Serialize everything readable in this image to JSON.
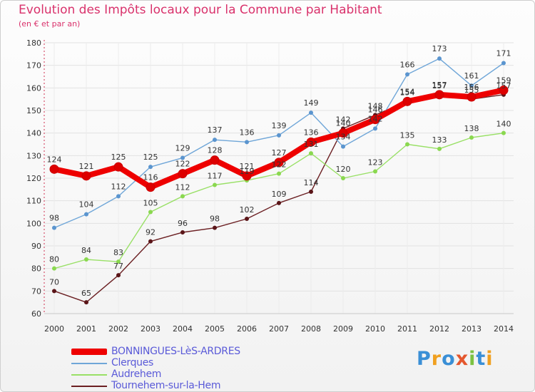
{
  "title": "Evolution des Impôts locaux pour la Commune par Habitant",
  "subtitle": "(en € et par an)",
  "brand": "Proxiti",
  "chart_data": {
    "type": "line",
    "title": "Evolution des Impôts locaux pour la Commune par Habitant",
    "subtitle": "(en € et par an)",
    "xlabel": "",
    "ylabel": "",
    "ylim": [
      60,
      180
    ],
    "yticks": [
      60,
      70,
      80,
      90,
      100,
      110,
      120,
      130,
      140,
      150,
      160,
      170,
      180
    ],
    "x": [
      2000,
      2001,
      2002,
      2003,
      2004,
      2005,
      2006,
      2007,
      2008,
      2009,
      2010,
      2011,
      2012,
      2013,
      2014
    ],
    "legend_position": "bottom-left",
    "series": [
      {
        "name": "Tournehem-sur-la-Hem",
        "color": "#6b1f22",
        "marker": "#5a1518",
        "values": [
          70,
          65,
          77,
          92,
          96,
          98,
          102,
          109,
          114,
          142,
          148,
          154,
          157,
          155,
          157
        ]
      },
      {
        "name": "Audrehem",
        "color": "#99e066",
        "marker": "#8ad84f",
        "values": [
          80,
          84,
          83,
          105,
          112,
          117,
          119,
          122,
          131,
          120,
          123,
          135,
          133,
          138,
          140
        ]
      },
      {
        "name": "Clerques",
        "color": "#6fa6d8",
        "marker": "#5b95cf",
        "values": [
          98,
          104,
          112,
          125,
          129,
          137,
          136,
          139,
          149,
          134,
          142,
          166,
          173,
          161,
          171
        ]
      },
      {
        "name": "BONNINGUES-LèS-ARDRES",
        "color": "#ee0000",
        "marker": "#dd0000",
        "values": [
          124,
          121,
          125,
          116,
          122,
          128,
          121,
          127,
          136,
          140,
          146,
          154,
          157,
          156,
          159
        ]
      }
    ]
  }
}
